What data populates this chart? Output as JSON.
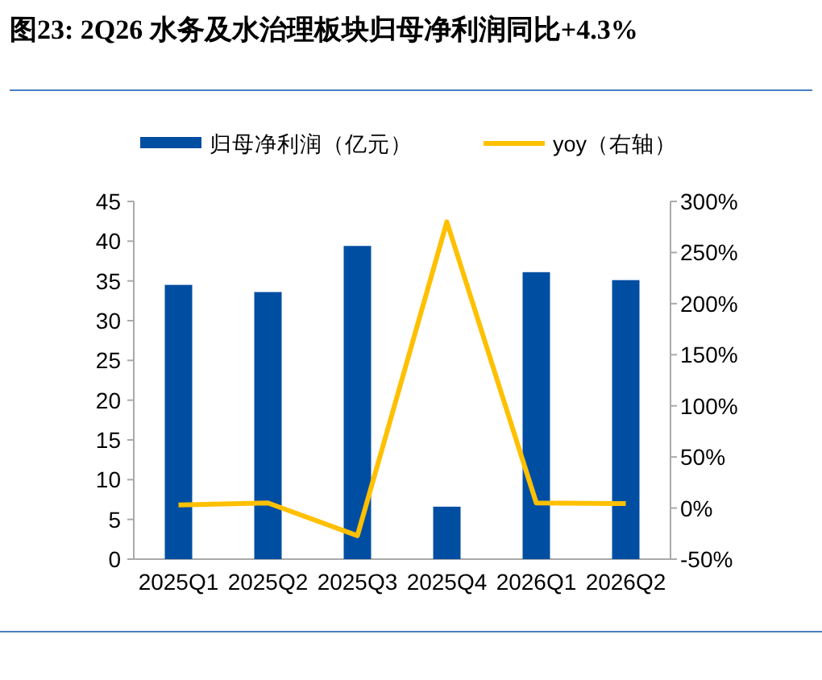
{
  "chart_data": {
    "type": "bar",
    "title": "图23: 2Q26 水务及水治理板块归母净利润同比+4.3%",
    "categories": [
      "2025Q1",
      "2025Q2",
      "2025Q3",
      "2025Q4",
      "2026Q1",
      "2026Q2"
    ],
    "series": [
      {
        "name": "归母净利润（亿元）",
        "color": "#004ea2",
        "values": [
          34.5,
          33.6,
          39.4,
          6.6,
          36.1,
          35.1
        ]
      },
      {
        "name": "yoy（右轴）",
        "type": "line",
        "axis": "y2",
        "color": "#ffc000",
        "values": [
          3,
          5,
          -27,
          280,
          5,
          4.3
        ]
      }
    ],
    "ylim": [
      0,
      45
    ],
    "yticks": [
      0,
      5,
      10,
      15,
      20,
      25,
      30,
      35,
      40,
      45
    ],
    "y2lim": [
      -50,
      300
    ],
    "y2ticks": [
      {
        "value": -50,
        "label": "-50%"
      },
      {
        "value": 0,
        "label": "0%"
      },
      {
        "value": 50,
        "label": "50%"
      },
      {
        "value": 100,
        "label": "100%"
      },
      {
        "value": 150,
        "label": "150%"
      },
      {
        "value": 200,
        "label": "200%"
      },
      {
        "value": 250,
        "label": "250%"
      },
      {
        "value": 300,
        "label": "300%"
      }
    ],
    "legend": "top",
    "grid": false
  }
}
